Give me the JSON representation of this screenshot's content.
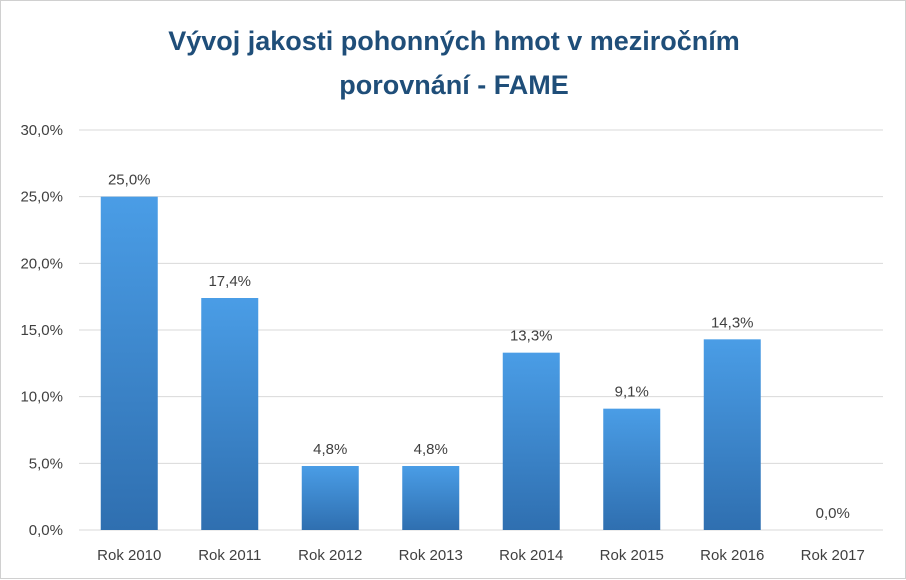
{
  "chart_data": {
    "type": "bar",
    "title": "Vývoj jakosti pohonných hmot v meziročním\nporovnání - FAME",
    "xlabel": "",
    "ylabel": "",
    "categories": [
      "Rok 2010",
      "Rok 2011",
      "Rok 2012",
      "Rok 2013",
      "Rok 2014",
      "Rok 2015",
      "Rok 2016",
      "Rok 2017"
    ],
    "values": [
      25.0,
      17.4,
      4.8,
      4.8,
      13.3,
      9.1,
      14.3,
      0.0
    ],
    "data_labels": [
      "25,0%",
      "17,4%",
      "4,8%",
      "4,8%",
      "13,3%",
      "9,1%",
      "14,3%",
      "0,0%"
    ],
    "ylim": [
      0,
      30
    ],
    "yticks": [
      0,
      5,
      10,
      15,
      20,
      25,
      30
    ],
    "ytick_labels": [
      "0,0%",
      "5,0%",
      "10,0%",
      "15,0%",
      "20,0%",
      "25,0%",
      "30,0%"
    ],
    "grid": true,
    "legend": "none",
    "colors": {
      "bar_top": "#4a9de6",
      "bar_bottom": "#2f6fb0",
      "title": "#1f4e79",
      "grid": "#d9d9d9",
      "text": "#404040"
    }
  }
}
